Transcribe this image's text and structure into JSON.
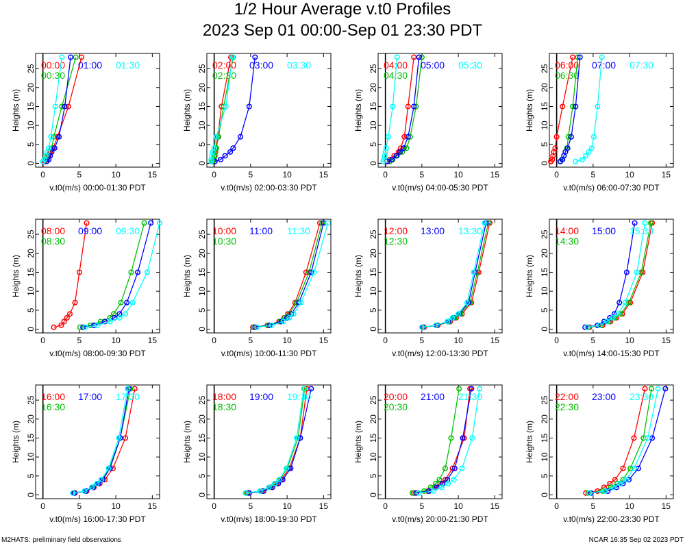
{
  "title_line1": "1/2 Hour Average v.t0 Profiles",
  "title_line2": "2023 Sep 01 00:00-Sep 01 23:30 PDT",
  "footer_left": "M2HATS: preliminary field observations",
  "footer_right": "NCAR 16:35 Sep 02 2023 PDT",
  "colors": {
    "series1": "#ff0000",
    "series2": "#00c000",
    "series3": "#0000ff",
    "series4": "#00ffff"
  },
  "chart_data": [
    {
      "type": "line",
      "xlabel": "v.t0(m/s) 00:00-01:30 PDT",
      "ylabel": "Heights (m)",
      "xlim": [
        -1,
        16
      ],
      "ylim": [
        -1,
        29
      ],
      "xticks": [
        "0",
        "5",
        "10",
        "15"
      ],
      "yticks": [
        "0",
        "5",
        "10",
        "15",
        "20",
        "25"
      ],
      "heights": [
        0.5,
        1,
        2,
        3,
        4,
        7,
        15,
        28
      ],
      "series": [
        {
          "name": "00:00",
          "values": [
            0.2,
            0.6,
            0.8,
            1.0,
            1.4,
            2.0,
            3.5,
            5.3
          ]
        },
        {
          "name": "00:30",
          "values": [
            0.0,
            0.4,
            0.6,
            0.9,
            1.2,
            1.5,
            2.6,
            4.5
          ]
        },
        {
          "name": "01:00",
          "values": [
            0.5,
            0.8,
            1.0,
            1.2,
            1.6,
            2.2,
            3.0,
            3.8
          ]
        },
        {
          "name": "01:30",
          "values": [
            0.0,
            0.2,
            0.4,
            0.6,
            0.8,
            1.1,
            1.7,
            2.6
          ]
        }
      ]
    },
    {
      "type": "line",
      "xlabel": "v.t0(m/s) 02:00-03:30 PDT",
      "ylabel": "Heights (m)",
      "xlim": [
        -1,
        16
      ],
      "ylim": [
        -1,
        29
      ],
      "xticks": [
        "0",
        "5",
        "10",
        "15"
      ],
      "yticks": [
        "0",
        "5",
        "10",
        "15",
        "20",
        "25"
      ],
      "heights": [
        0.5,
        1,
        2,
        3,
        4,
        7,
        15,
        28
      ],
      "series": [
        {
          "name": "02:00",
          "values": [
            -0.3,
            -0.1,
            0.0,
            0.1,
            0.2,
            0.5,
            1.0,
            2.3
          ]
        },
        {
          "name": "02:30",
          "values": [
            -0.2,
            0.0,
            0.1,
            0.2,
            0.3,
            0.6,
            1.3,
            2.6
          ]
        },
        {
          "name": "03:00",
          "values": [
            0.1,
            0.9,
            1.5,
            2.2,
            2.6,
            3.6,
            4.8,
            5.6
          ]
        },
        {
          "name": "03:30",
          "values": [
            -0.4,
            -0.4,
            -0.3,
            -0.2,
            0.0,
            0.3,
            1.6,
            2.5
          ]
        }
      ]
    },
    {
      "type": "line",
      "xlabel": "v.t0(m/s) 04:00-05:30 PDT",
      "ylabel": "Heights (m)",
      "xlim": [
        -1,
        16
      ],
      "ylim": [
        -1,
        29
      ],
      "xticks": [
        "0",
        "5",
        "10",
        "15"
      ],
      "yticks": [
        "0",
        "5",
        "10",
        "15",
        "20",
        "25"
      ],
      "heights": [
        0.5,
        1,
        2,
        3,
        4,
        7,
        15,
        28
      ],
      "series": [
        {
          "name": "04:00",
          "values": [
            0.2,
            0.6,
            1.2,
            1.8,
            2.1,
            2.6,
            3.1,
            3.9
          ]
        },
        {
          "name": "04:30",
          "values": [
            0.6,
            1.0,
            1.6,
            2.3,
            2.9,
            3.4,
            4.2,
            5.0
          ]
        },
        {
          "name": "05:00",
          "values": [
            0.3,
            0.9,
            1.5,
            2.0,
            2.5,
            3.1,
            3.9,
            4.6
          ]
        },
        {
          "name": "05:30",
          "values": [
            -0.3,
            -0.2,
            -0.1,
            0.0,
            0.1,
            0.4,
            1.0,
            1.6
          ]
        }
      ]
    },
    {
      "type": "line",
      "xlabel": "v.t0(m/s) 06:00-07:30 PDT",
      "ylabel": "Heights (m)",
      "xlim": [
        -1,
        16
      ],
      "ylim": [
        -1,
        29
      ],
      "xticks": [
        "0",
        "5",
        "10",
        "15"
      ],
      "yticks": [
        "0",
        "5",
        "10",
        "15",
        "20",
        "25"
      ],
      "heights": [
        0.5,
        1,
        2,
        3,
        4,
        7,
        15,
        28
      ],
      "series": [
        {
          "name": "06:00",
          "values": [
            -0.8,
            -0.6,
            -0.5,
            -0.4,
            -0.2,
            0.0,
            0.8,
            2.2
          ]
        },
        {
          "name": "06:30",
          "values": [
            0.5,
            0.7,
            1.0,
            1.2,
            1.4,
            1.6,
            2.2,
            2.9
          ]
        },
        {
          "name": "07:00",
          "values": [
            0.5,
            0.8,
            1.0,
            1.2,
            1.5,
            2.0,
            2.6,
            3.2
          ]
        },
        {
          "name": "07:30",
          "values": [
            2.6,
            3.5,
            4.0,
            4.4,
            4.8,
            5.1,
            5.6,
            6.2
          ]
        }
      ]
    },
    {
      "type": "line",
      "xlabel": "v.t0(m/s) 08:00-09:30 PDT",
      "ylabel": "Heights (m)",
      "xlim": [
        -1,
        16
      ],
      "ylim": [
        -1,
        29
      ],
      "xticks": [
        "0",
        "5",
        "10",
        "15"
      ],
      "yticks": [
        "0",
        "5",
        "10",
        "15",
        "20",
        "25"
      ],
      "heights": [
        0.5,
        1,
        2,
        3,
        4,
        7,
        15,
        28
      ],
      "series": [
        {
          "name": "08:00",
          "values": [
            1.5,
            2.5,
            2.9,
            3.3,
            3.7,
            4.4,
            5.0,
            6.0
          ]
        },
        {
          "name": "08:30",
          "values": [
            5.1,
            6.5,
            7.9,
            9.2,
            9.7,
            10.7,
            12.1,
            13.9
          ]
        },
        {
          "name": "09:00",
          "values": [
            5.5,
            7.0,
            8.5,
            9.8,
            10.5,
            11.5,
            13.0,
            14.8
          ]
        },
        {
          "name": "09:30",
          "values": [
            5.8,
            7.5,
            9.2,
            10.5,
            11.3,
            12.3,
            14.3,
            16.0
          ]
        }
      ]
    },
    {
      "type": "line",
      "xlabel": "v.t0(m/s) 10:00-11:30 PDT",
      "ylabel": "Heights (m)",
      "xlim": [
        -1,
        16
      ],
      "ylim": [
        -1,
        29
      ],
      "xticks": [
        "0",
        "5",
        "10",
        "15"
      ],
      "yticks": [
        "0",
        "5",
        "10",
        "15",
        "20",
        "25"
      ],
      "heights": [
        0.5,
        1,
        2,
        3,
        4,
        7,
        15,
        28
      ],
      "series": [
        {
          "name": "10:00",
          "values": [
            5.3,
            7.3,
            8.9,
            9.6,
            10.1,
            11.1,
            12.6,
            14.5
          ]
        },
        {
          "name": "10:30",
          "values": [
            5.4,
            7.4,
            9.0,
            9.7,
            10.3,
            11.3,
            13.0,
            14.8
          ]
        },
        {
          "name": "11:00",
          "values": [
            5.6,
            7.6,
            9.2,
            10.0,
            10.6,
            11.6,
            13.3,
            15.0
          ]
        },
        {
          "name": "11:30",
          "values": [
            5.9,
            7.9,
            9.5,
            10.3,
            10.9,
            11.9,
            13.7,
            15.6
          ]
        }
      ]
    },
    {
      "type": "line",
      "xlabel": "v.t0(m/s) 12:00-13:30 PDT",
      "ylabel": "Heights (m)",
      "xlim": [
        -1,
        16
      ],
      "ylim": [
        -1,
        29
      ],
      "xticks": [
        "0",
        "5",
        "10",
        "15"
      ],
      "yticks": [
        "0",
        "5",
        "10",
        "15",
        "20",
        "25"
      ],
      "heights": [
        0.5,
        1,
        2,
        3,
        4,
        7,
        15,
        28
      ],
      "series": [
        {
          "name": "12:00",
          "values": [
            5.3,
            7.2,
            8.9,
            9.7,
            10.5,
            11.8,
            12.8,
            14.3
          ]
        },
        {
          "name": "12:30",
          "values": [
            5.2,
            7.1,
            8.8,
            9.5,
            10.3,
            11.6,
            12.6,
            14.1
          ]
        },
        {
          "name": "13:00",
          "values": [
            5.1,
            7.0,
            8.6,
            9.3,
            10.1,
            11.4,
            12.3,
            13.8
          ]
        },
        {
          "name": "13:30",
          "values": [
            5.0,
            6.9,
            8.5,
            9.2,
            10.0,
            11.2,
            12.1,
            13.6
          ]
        }
      ]
    },
    {
      "type": "line",
      "xlabel": "v.t0(m/s) 14:00-15:30 PDT",
      "ylabel": "Heights (m)",
      "xlim": [
        -1,
        16
      ],
      "ylim": [
        -1,
        29
      ],
      "xticks": [
        "0",
        "5",
        "10",
        "15"
      ],
      "yticks": [
        "0",
        "5",
        "10",
        "15",
        "20",
        "25"
      ],
      "heights": [
        0.5,
        1,
        2,
        3,
        4,
        7,
        15,
        28
      ],
      "series": [
        {
          "name": "14:00",
          "values": [
            4.5,
            6.3,
            7.4,
            8.2,
            9.0,
            10.1,
            11.8,
            13.1
          ]
        },
        {
          "name": "14:30",
          "values": [
            4.3,
            6.1,
            7.2,
            8.0,
            8.8,
            9.9,
            11.6,
            12.9
          ]
        },
        {
          "name": "15:00",
          "values": [
            3.9,
            5.6,
            6.5,
            7.3,
            7.9,
            8.6,
            9.6,
            10.7
          ]
        },
        {
          "name": "15:30",
          "values": [
            4.2,
            5.9,
            6.9,
            7.7,
            8.4,
            9.4,
            11.0,
            12.1
          ]
        }
      ]
    },
    {
      "type": "line",
      "xlabel": "v.t0(m/s) 16:00-17:30 PDT",
      "ylabel": "Heights (m)",
      "xlim": [
        -1,
        16
      ],
      "ylim": [
        -1,
        29
      ],
      "xticks": [
        "0",
        "5",
        "10",
        "15"
      ],
      "yticks": [
        "0",
        "5",
        "10",
        "15",
        "20",
        "25"
      ],
      "heights": [
        0.5,
        1,
        2,
        3,
        4,
        7,
        15,
        28
      ],
      "series": [
        {
          "name": "16:00",
          "values": [
            4.4,
            6.0,
            7.0,
            7.8,
            8.5,
            9.6,
            11.3,
            12.6
          ]
        },
        {
          "name": "16:30",
          "values": [
            4.2,
            5.8,
            6.8,
            7.5,
            8.1,
            9.1,
            10.6,
            12.0
          ]
        },
        {
          "name": "17:00",
          "values": [
            4.3,
            5.9,
            6.9,
            7.6,
            8.2,
            9.2,
            10.6,
            11.8
          ]
        },
        {
          "name": "17:30",
          "values": [
            4.1,
            5.7,
            6.7,
            7.4,
            8.0,
            9.0,
            10.4,
            11.6
          ]
        }
      ]
    },
    {
      "type": "line",
      "xlabel": "v.t0(m/s) 18:00-19:30 PDT",
      "ylabel": "Heights (m)",
      "xlim": [
        -1,
        16
      ],
      "ylim": [
        -1,
        29
      ],
      "xticks": [
        "0",
        "5",
        "10",
        "15"
      ],
      "yticks": [
        "0",
        "5",
        "10",
        "15",
        "20",
        "25"
      ],
      "heights": [
        0.5,
        1,
        2,
        3,
        4,
        7,
        15,
        28
      ],
      "series": [
        {
          "name": "18:00",
          "values": [
            4.6,
            6.6,
            7.8,
            8.6,
            9.2,
            10.3,
            11.8,
            12.7
          ]
        },
        {
          "name": "18:30",
          "values": [
            4.4,
            6.4,
            7.6,
            8.4,
            9.0,
            10.0,
            11.5,
            12.4
          ]
        },
        {
          "name": "19:00",
          "values": [
            4.8,
            6.8,
            8.0,
            8.8,
            9.4,
            10.5,
            11.8,
            13.3
          ]
        },
        {
          "name": "19:30",
          "values": [
            4.3,
            6.3,
            7.5,
            8.3,
            8.9,
            9.9,
            11.3,
            12.3
          ]
        }
      ]
    },
    {
      "type": "line",
      "xlabel": "v.t0(m/s) 20:00-21:30 PDT",
      "ylabel": "Heights (m)",
      "xlim": [
        -1,
        16
      ],
      "ylim": [
        -1,
        29
      ],
      "xticks": [
        "0",
        "5",
        "10",
        "15"
      ],
      "yticks": [
        "0",
        "5",
        "10",
        "15",
        "20",
        "25"
      ],
      "heights": [
        0.5,
        1,
        2,
        3,
        4,
        7,
        15,
        28
      ],
      "series": [
        {
          "name": "20:00",
          "values": [
            3.9,
            5.8,
            6.8,
            7.5,
            8.2,
            9.2,
            10.8,
            11.6
          ]
        },
        {
          "name": "20:30",
          "values": [
            3.7,
            5.3,
            6.2,
            6.9,
            7.4,
            8.2,
            9.0,
            10.1
          ]
        },
        {
          "name": "21:00",
          "values": [
            4.2,
            6.0,
            7.0,
            7.8,
            8.5,
            9.5,
            10.6,
            11.8
          ]
        },
        {
          "name": "21:30",
          "values": [
            4.6,
            6.6,
            7.7,
            8.6,
            9.4,
            10.5,
            11.9,
            12.9
          ]
        }
      ]
    },
    {
      "type": "line",
      "xlabel": "v.t0(m/s) 22:00-23:30 PDT",
      "ylabel": "Heights (m)",
      "xlim": [
        -1,
        16
      ],
      "ylim": [
        -1,
        29
      ],
      "xticks": [
        "0",
        "5",
        "10",
        "15"
      ],
      "yticks": [
        "0",
        "5",
        "10",
        "15",
        "20",
        "25"
      ],
      "heights": [
        0.5,
        1,
        2,
        3,
        4,
        7,
        15,
        28
      ],
      "series": [
        {
          "name": "22:00",
          "values": [
            4.0,
            5.6,
            6.5,
            7.3,
            8.0,
            9.1,
            10.6,
            12.1
          ]
        },
        {
          "name": "22:30",
          "values": [
            4.3,
            6.3,
            7.4,
            8.3,
            9.1,
            10.1,
            11.9,
            13.0
          ]
        },
        {
          "name": "23:00",
          "values": [
            4.7,
            7.0,
            8.2,
            9.1,
            9.9,
            11.2,
            13.1,
            14.9
          ]
        },
        {
          "name": "23:30",
          "values": [
            4.5,
            6.6,
            7.8,
            8.7,
            9.5,
            10.6,
            12.5,
            13.9
          ]
        }
      ]
    }
  ]
}
